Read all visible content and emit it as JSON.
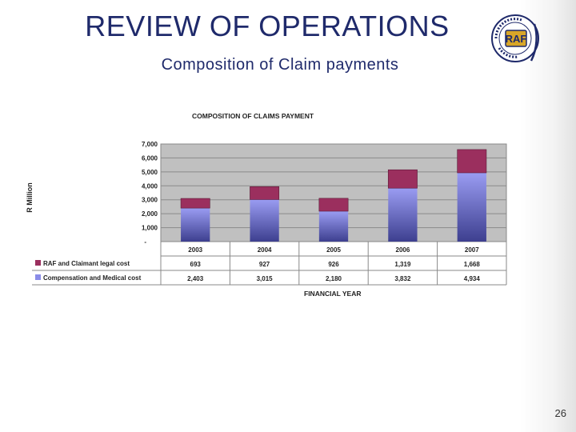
{
  "slide": {
    "title": "REVIEW OF OPERATIONS",
    "subtitle": "Composition of Claim payments",
    "page_number": "26",
    "logo_text": "RAF",
    "logo_ring_text": "ROAD ACCIDENT FUND"
  },
  "colors": {
    "title": "#1f2a6b",
    "plot_bg": "#c0c0c0",
    "legal": "#9b2f5e",
    "compensation": "#8a8ce8"
  },
  "chart_data": {
    "type": "bar",
    "stacked": true,
    "title": "COMPOSITION OF CLAIMS PAYMENT",
    "xlabel": "FINANCIAL YEAR",
    "ylabel": "R Million",
    "ylim": [
      0,
      7000
    ],
    "yticks": [
      "7,000",
      "6,000",
      "5,000",
      "4,000",
      "3,000",
      "2,000",
      "1,000",
      "-"
    ],
    "grid": true,
    "legend": "data table",
    "categories": [
      "2003",
      "2004",
      "2005",
      "2006",
      "2007"
    ],
    "series": [
      {
        "name": "RAF and Claimant legal cost",
        "values": [
          693,
          927,
          926,
          1319,
          1668
        ],
        "labels": [
          "693",
          "927",
          "926",
          "1,319",
          "1,668"
        ]
      },
      {
        "name": "Compensation and Medical cost",
        "values": [
          2403,
          3015,
          2180,
          3832,
          4934
        ],
        "labels": [
          "2,403",
          "3,015",
          "2,180",
          "3,832",
          "4,934"
        ]
      }
    ]
  }
}
